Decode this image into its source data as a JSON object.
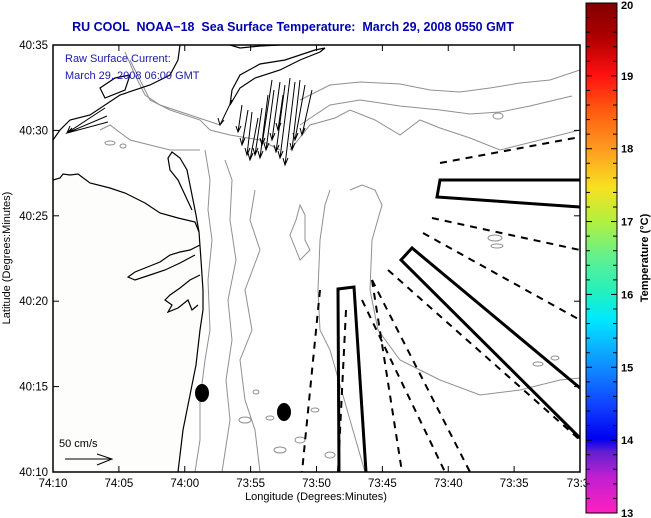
{
  "title": "RU COOL  NOAA−18  Sea Surface Temperature:  March 29, 2008 0550 GMT",
  "annotation": {
    "line1": "Raw Surface Current:",
    "line2": "March 29, 2008 06:00 GMT",
    "scale_label": "50 cm/s"
  },
  "axes": {
    "xlabel": "Longitude (Degrees:Minutes)",
    "ylabel": "Latitude (Degrees:Minutes)",
    "x_ticks": [
      "74:10",
      "74:05",
      "74:00",
      "73:55",
      "73:50",
      "73:45",
      "73:40",
      "73:35",
      "73:3"
    ],
    "y_ticks": [
      "40:35",
      "40:30",
      "40:25",
      "40:20",
      "40:15",
      "40:10"
    ]
  },
  "colorbar": {
    "label": "Temperature (°C)",
    "ticks": [
      "20",
      "19",
      "18",
      "17",
      "16",
      "15",
      "14",
      "13"
    ],
    "range": [
      13,
      20
    ],
    "colors": {
      "20": "#800000",
      "19": "#ff1010",
      "18": "#ff9a20",
      "17.5": "#f0f020",
      "17": "#b0f040",
      "16.5": "#60f090",
      "16": "#20f0c0",
      "15.5": "#00e8ff",
      "15": "#1090ff",
      "14.5": "#1050ff",
      "14": "#0000ff",
      "13.8": "#0000e8",
      "13.7": "#6020d0",
      "13.4": "#c020d0",
      "13": "#ff20c0"
    }
  },
  "colors": {
    "title": "#0000b0",
    "annotation": "#1a1aa6",
    "coast": "#000000",
    "bathymetry": "#909090",
    "land": "#fdfdfb"
  }
}
